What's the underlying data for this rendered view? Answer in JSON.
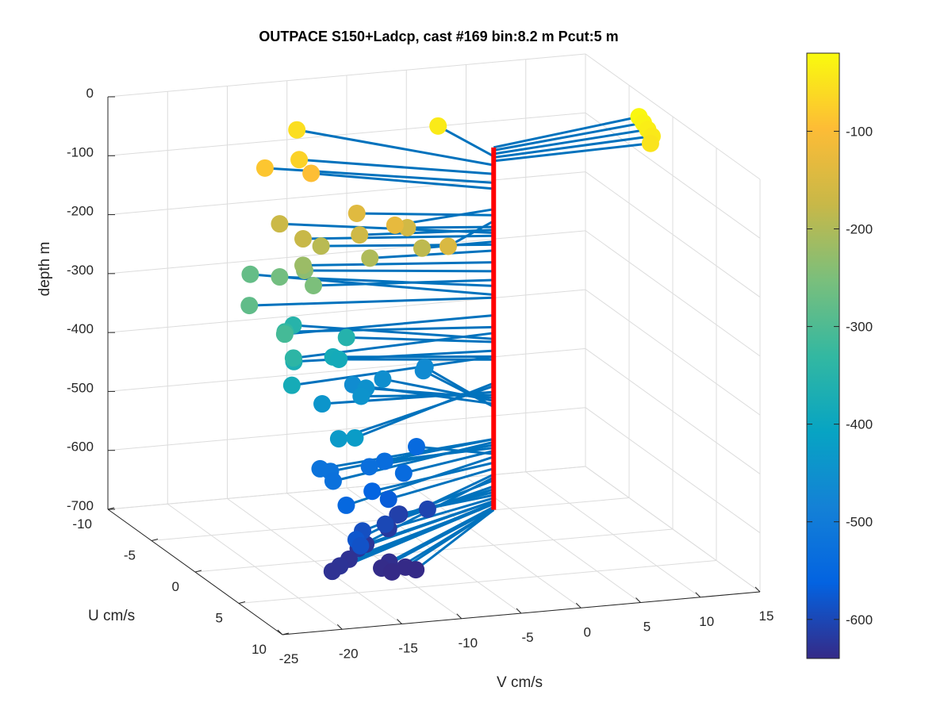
{
  "chart_data": {
    "type": "scatter",
    "title": "OUTPACE S150+Ladcp, cast #169 bin:8.2 m  Pcut:5 m",
    "xlabel": "V cm/s",
    "ylabel": "U cm/s",
    "zlabel": "depth m",
    "xlim": [
      -25,
      15
    ],
    "ylim": [
      -10,
      10
    ],
    "zlim": [
      -700,
      0
    ],
    "x_ticks": [
      "-25",
      "-20",
      "-15",
      "-10",
      "-5",
      "0",
      "5",
      "10",
      "15"
    ],
    "y_ticks": [
      "-10",
      "-5",
      "0",
      "5",
      "10"
    ],
    "z_ticks": [
      "0",
      "-100",
      "-200",
      "-300",
      "-400",
      "-500",
      "-600",
      "-700"
    ],
    "grid": true,
    "colorbar": {
      "colormap": "parula",
      "range": [
        -640,
        -20
      ],
      "ticks": [
        "-100",
        "-200",
        "-300",
        "-400",
        "-500",
        "-600"
      ]
    },
    "colors": {
      "stick": "#0072bd",
      "profile_line": "#ff0000"
    },
    "series": [
      {
        "type": "quiver",
        "points": [
          {
            "depth": -25,
            "v": 14.0,
            "u": -2.5
          },
          {
            "depth": -30,
            "v": 14.0,
            "u": -2.0
          },
          {
            "depth": -36,
            "v": 14.0,
            "u": -1.5
          },
          {
            "depth": -42,
            "v": 14.0,
            "u": -1.0
          },
          {
            "depth": -48,
            "v": 13.5,
            "u": -0.5
          },
          {
            "depth": -40,
            "v": -1.0,
            "u": -5.0
          },
          {
            "depth": -55,
            "v": -11.0,
            "u": -7.5
          },
          {
            "depth": -70,
            "v": -13.0,
            "u": -4.5
          },
          {
            "depth": -85,
            "v": -15.5,
            "u": -5.0
          },
          {
            "depth": -95,
            "v": -12.0,
            "u": -4.5
          },
          {
            "depth": -130,
            "v": -9.0,
            "u": 1.0
          },
          {
            "depth": -140,
            "v": -10.0,
            "u": -2.0
          },
          {
            "depth": -150,
            "v": -6.0,
            "u": 3.0
          },
          {
            "depth": -160,
            "v": -6.5,
            "u": -1.0
          },
          {
            "depth": -165,
            "v": -10.5,
            "u": -1.0
          },
          {
            "depth": -170,
            "v": -15.0,
            "u": -4.0
          },
          {
            "depth": -175,
            "v": -14.5,
            "u": -2.0
          },
          {
            "depth": -185,
            "v": -6.0,
            "u": 0.0
          },
          {
            "depth": -190,
            "v": -13.0,
            "u": -2.0
          },
          {
            "depth": -200,
            "v": -10.0,
            "u": -0.5
          },
          {
            "depth": -220,
            "v": -14.5,
            "u": -2.0
          },
          {
            "depth": -235,
            "v": -14.0,
            "u": -2.5
          },
          {
            "depth": -250,
            "v": -14.0,
            "u": -1.5
          },
          {
            "depth": -260,
            "v": -15.0,
            "u": -4.0
          },
          {
            "depth": -275,
            "v": -16.0,
            "u": -6.0
          },
          {
            "depth": -280,
            "v": -19.0,
            "u": -2.0
          },
          {
            "depth": -310,
            "v": -17.5,
            "u": 0.0
          },
          {
            "depth": -330,
            "v": -16.0,
            "u": -2.0
          },
          {
            "depth": -340,
            "v": -17.5,
            "u": 1.0
          },
          {
            "depth": -350,
            "v": -13.5,
            "u": -4.5
          },
          {
            "depth": -355,
            "v": -10.5,
            "u": -2.5
          },
          {
            "depth": -370,
            "v": -16.0,
            "u": -1.0
          },
          {
            "depth": -380,
            "v": -18.0,
            "u": 1.5
          },
          {
            "depth": -380,
            "v": -12.0,
            "u": -2.0
          },
          {
            "depth": -385,
            "v": -11.5,
            "u": -2.0
          },
          {
            "depth": -425,
            "v": -16.0,
            "u": 6.0
          },
          {
            "depth": -430,
            "v": -17.0,
            "u": 5.5
          },
          {
            "depth": -440,
            "v": -14.0,
            "u": -0.5
          },
          {
            "depth": -445,
            "v": -10.0,
            "u": -1.5
          },
          {
            "depth": -450,
            "v": -8.5,
            "u": -3.0
          },
          {
            "depth": -455,
            "v": -6.0,
            "u": -4.5
          },
          {
            "depth": -460,
            "v": -8.5,
            "u": -4.5
          },
          {
            "depth": -465,
            "v": -1.5,
            "u": -6.0
          },
          {
            "depth": -465,
            "v": -1.0,
            "u": -6.5
          },
          {
            "depth": -520,
            "v": -16.0,
            "u": 2.0
          },
          {
            "depth": -520,
            "v": -15.5,
            "u": 2.5
          },
          {
            "depth": -525,
            "v": -16.0,
            "u": 3.5
          },
          {
            "depth": -530,
            "v": -11.5,
            "u": 1.5
          },
          {
            "depth": -535,
            "v": -9.5,
            "u": 0.5
          },
          {
            "depth": -540,
            "v": -9.0,
            "u": 2.0
          },
          {
            "depth": -545,
            "v": -5.0,
            "u": -2.0
          },
          {
            "depth": -550,
            "v": -16.0,
            "u": 5.0
          },
          {
            "depth": -560,
            "v": -12.0,
            "u": 2.5
          },
          {
            "depth": -570,
            "v": -11.0,
            "u": 3.0
          },
          {
            "depth": -580,
            "v": -17.0,
            "u": 7.5
          },
          {
            "depth": -585,
            "v": -17.0,
            "u": 8.0
          },
          {
            "depth": -590,
            "v": -15.0,
            "u": 5.5
          },
          {
            "depth": -600,
            "v": -12.0,
            "u": 4.0
          },
          {
            "depth": -605,
            "v": -7.0,
            "u": 2.0
          },
          {
            "depth": -610,
            "v": -9.5,
            "u": 2.0
          },
          {
            "depth": -615,
            "v": -9.0,
            "u": 1.5
          },
          {
            "depth": -620,
            "v": -11.0,
            "u": 3.0
          },
          {
            "depth": -625,
            "v": -14.0,
            "u": 4.5
          },
          {
            "depth": -625,
            "v": -15.0,
            "u": 5.0
          },
          {
            "depth": -628,
            "v": -18.0,
            "u": 7.0
          },
          {
            "depth": -630,
            "v": -19.0,
            "u": 7.5
          },
          {
            "depth": -630,
            "v": -16.5,
            "u": 6.0
          },
          {
            "depth": -635,
            "v": -13.5,
            "u": 6.5
          },
          {
            "depth": -638,
            "v": -14.5,
            "u": 7.0
          },
          {
            "depth": -640,
            "v": -14.0,
            "u": 7.5
          },
          {
            "depth": -640,
            "v": -12.0,
            "u": 7.5
          },
          {
            "depth": -640,
            "v": -12.5,
            "u": 7.0
          }
        ]
      }
    ]
  }
}
